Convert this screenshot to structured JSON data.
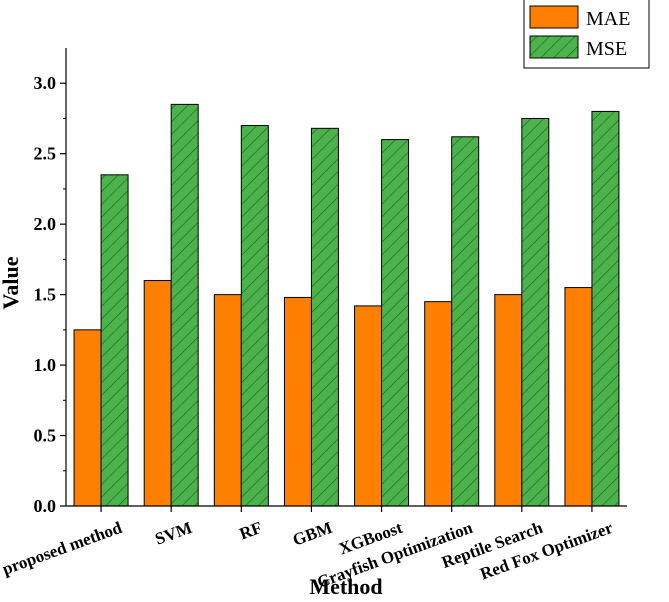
{
  "chart_data": {
    "type": "bar",
    "title": "",
    "xlabel": "Method",
    "ylabel": "Value",
    "ylim": [
      0,
      3.25
    ],
    "yticks": [
      "0.0",
      "0.5",
      "1.0",
      "1.5",
      "2.0",
      "2.5",
      "3.0"
    ],
    "categories": [
      "The proposed method",
      "SVM",
      "RF",
      "GBM",
      "XGBoost",
      "Crayfish Optimization",
      "Reptile Search",
      "Red Fox Optimizer"
    ],
    "series": [
      {
        "name": "MAE",
        "color": "#ff8000",
        "pattern": "solid",
        "values": [
          1.25,
          1.6,
          1.5,
          1.48,
          1.42,
          1.45,
          1.5,
          1.55
        ]
      },
      {
        "name": "MSE",
        "color": "#4cb34c",
        "pattern": "hatched",
        "values": [
          2.35,
          2.85,
          2.7,
          2.68,
          2.6,
          2.62,
          2.75,
          2.8
        ]
      }
    ],
    "legend": "top-right",
    "grid": false
  }
}
